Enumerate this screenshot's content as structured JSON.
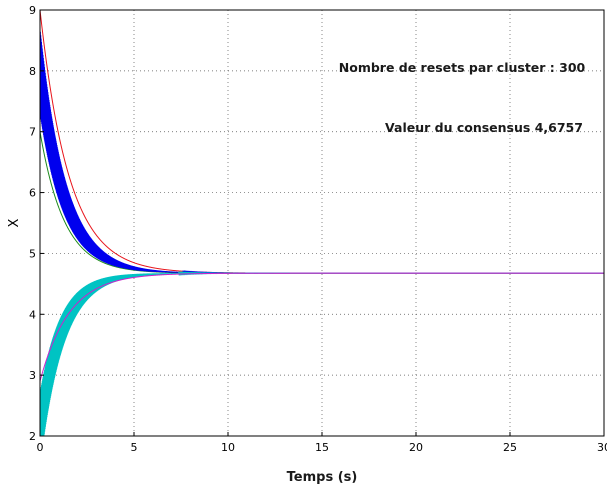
{
  "chart_data": {
    "type": "line",
    "xlabel": "Temps (s)",
    "ylabel": "X",
    "xlim": [
      0,
      30
    ],
    "ylim": [
      2,
      9
    ],
    "x_ticks": [
      "0",
      "5",
      "10",
      "15",
      "20",
      "25",
      "30"
    ],
    "y_ticks": [
      "2",
      "3",
      "4",
      "5",
      "6",
      "7",
      "8",
      "9"
    ],
    "grid": true,
    "annotations": [
      "Nombre de resets par cluster : 300",
      "Valeur du consensus 4,6757"
    ],
    "consensus_value": 4.6757,
    "series": [
      {
        "color": "#e8141b",
        "start": 9.0,
        "final": 4.6757,
        "tau": 1.55,
        "oscillating": false
      },
      {
        "color": "#1c8a1c",
        "start": 7.0,
        "final": 4.6757,
        "tau": 1.3,
        "oscillating": false
      },
      {
        "color": "#0000ee",
        "start": 8.0,
        "final": 4.6757,
        "tau": 1.35,
        "oscillating": true,
        "osc_amp": 0.7
      },
      {
        "color": "#00c3c3",
        "start": 2.1,
        "final": 4.6757,
        "tau": 1.2,
        "oscillating": true,
        "osc_amp": 0.6
      },
      {
        "color": "#cc22cc",
        "start": 2.9,
        "final": 4.6757,
        "tau": 1.55,
        "oscillating": false
      }
    ]
  }
}
